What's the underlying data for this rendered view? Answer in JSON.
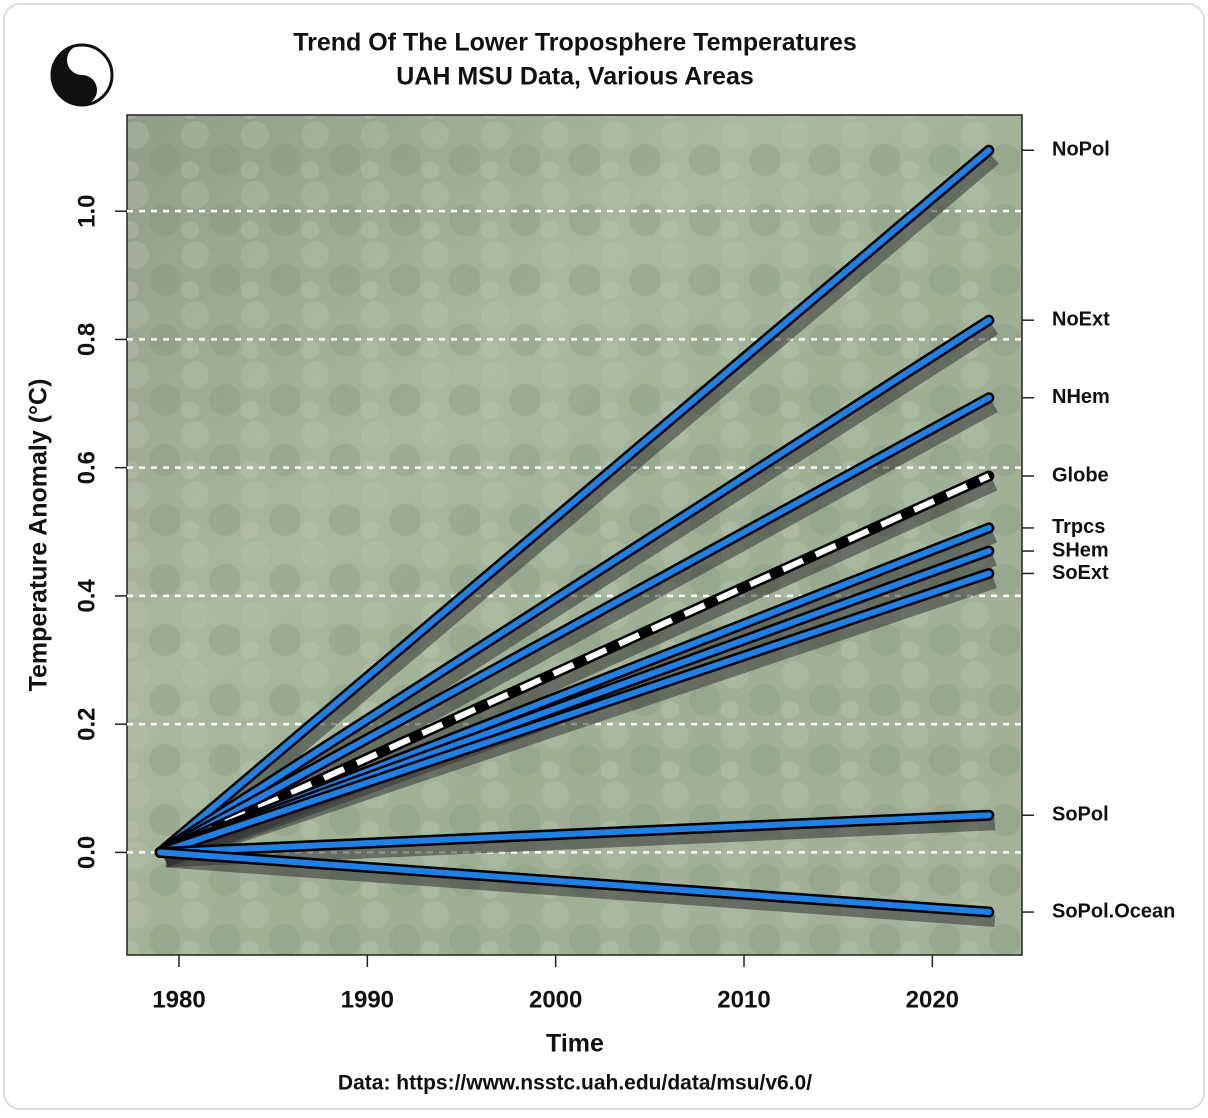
{
  "chart_data": {
    "type": "line",
    "title": "Trend Of The Lower Troposphere Temperatures",
    "subtitle": "UAH MSU Data, Various Areas",
    "x_label": "Time",
    "y_label": "Temperature Anomaly (°C)",
    "caption": "Data: https://www.nsstc.uah.edu/data/msu/v6.0/",
    "x": [
      1979,
      2023
    ],
    "xlim": [
      1977.24,
      2024.76
    ],
    "xticks": [
      1980,
      1990,
      2000,
      2010,
      2020
    ],
    "ylim": [
      -0.16,
      1.15
    ],
    "yticks": [
      {
        "value": 0,
        "label": "0.0"
      },
      0.2,
      0.4,
      0.6,
      0.8,
      {
        "value": 1,
        "label": "1.0"
      }
    ],
    "grid": true,
    "series": [
      {
        "name": "NoPol",
        "color": "#1f80e6",
        "values": [
          0,
          1.095
        ]
      },
      {
        "name": "NoExt",
        "color": "#1f80e6",
        "values": [
          0,
          0.83
        ]
      },
      {
        "name": "NHem",
        "color": "#1f80e6",
        "values": [
          0,
          0.709
        ]
      },
      {
        "name": "Globe",
        "color": "#ffffff",
        "linestyle": "dashed",
        "values": [
          0,
          0.587
        ]
      },
      {
        "name": "Trpcs",
        "color": "#1f80e6",
        "values": [
          0,
          0.506
        ]
      },
      {
        "name": "SHem",
        "color": "#1f80e6",
        "values": [
          0,
          0.47
        ]
      },
      {
        "name": "SoExt",
        "color": "#1f80e6",
        "values": [
          0,
          0.435
        ]
      },
      {
        "name": "SoPol",
        "color": "#1f80e6",
        "values": [
          0,
          0.058
        ]
      },
      {
        "name": "SoPol.Ocean",
        "color": "#1f80e6",
        "values": [
          0,
          -0.093
        ]
      }
    ]
  }
}
